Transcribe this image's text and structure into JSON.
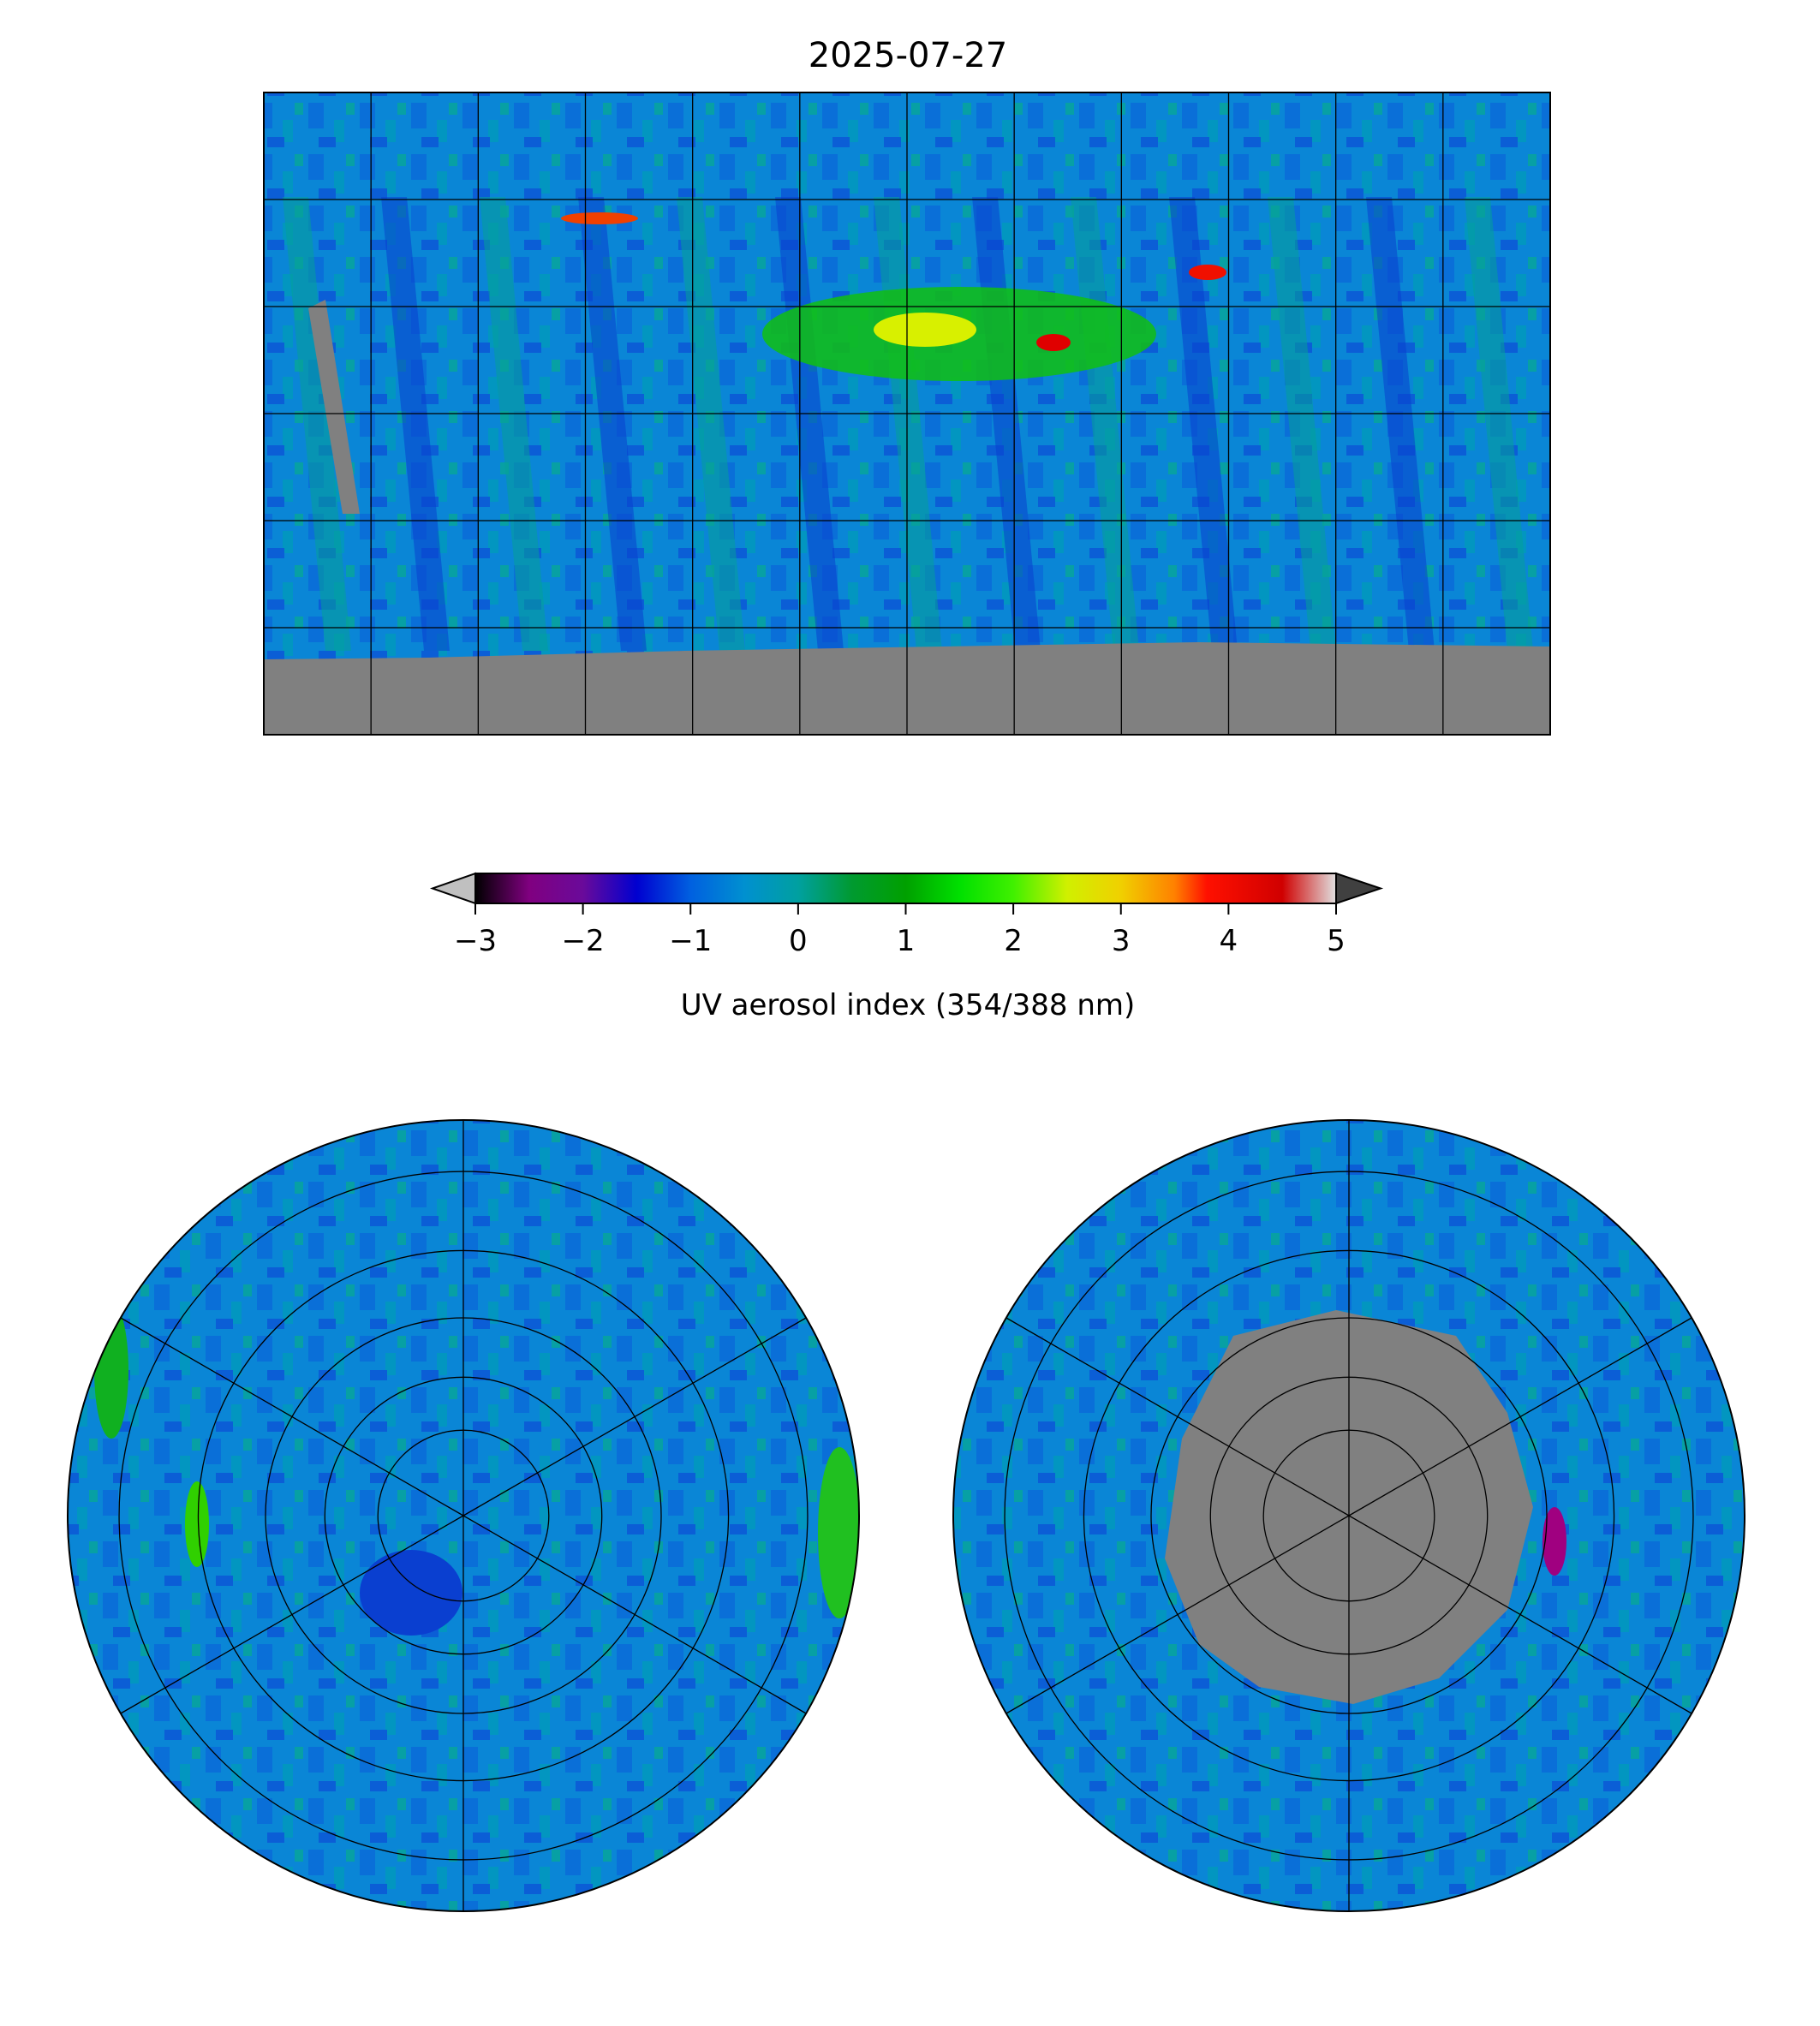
{
  "chart_data": {
    "type": "heatmap",
    "title": "2025-07-27",
    "panels": [
      "global-map",
      "north-polar-map",
      "south-polar-map"
    ],
    "colorbar": {
      "label": "UV aerosol index (354/388 nm)",
      "range": [
        -3,
        5
      ],
      "ticks": [
        -3,
        -2,
        -1,
        0,
        1,
        2,
        3,
        4,
        5
      ],
      "tick_labels": [
        "−3",
        "−2",
        "−1",
        "0",
        "1",
        "2",
        "3",
        "4",
        "5"
      ],
      "extend": "both",
      "under_color": "#c0c0c0",
      "over_color": "#404040",
      "stops": [
        {
          "v": -3,
          "c": "#000000"
        },
        {
          "v": -2.5,
          "c": "#800080"
        },
        {
          "v": -2,
          "c": "#6a0a9a"
        },
        {
          "v": -1.5,
          "c": "#0000d0"
        },
        {
          "v": -1,
          "c": "#0060e0"
        },
        {
          "v": -0.5,
          "c": "#0090d0"
        },
        {
          "v": 0,
          "c": "#00a0a0"
        },
        {
          "v": 0.5,
          "c": "#009a30"
        },
        {
          "v": 1,
          "c": "#00a000"
        },
        {
          "v": 1.5,
          "c": "#00e000"
        },
        {
          "v": 2,
          "c": "#40f000"
        },
        {
          "v": 2.5,
          "c": "#d0f000"
        },
        {
          "v": 3,
          "c": "#f0d000"
        },
        {
          "v": 3.5,
          "c": "#ff8000"
        },
        {
          "v": 3.8,
          "c": "#ff1000"
        },
        {
          "v": 4.5,
          "c": "#d00000"
        },
        {
          "v": 5,
          "c": "#e0e0e0"
        }
      ]
    },
    "global_map": {
      "lon_range": [
        -180,
        180
      ],
      "lat_range": [
        -90,
        90
      ],
      "grid_lon_step": 30,
      "grid_lat_step": 30,
      "missing_color": "#808080"
    },
    "dominant_value": -0.5
  }
}
